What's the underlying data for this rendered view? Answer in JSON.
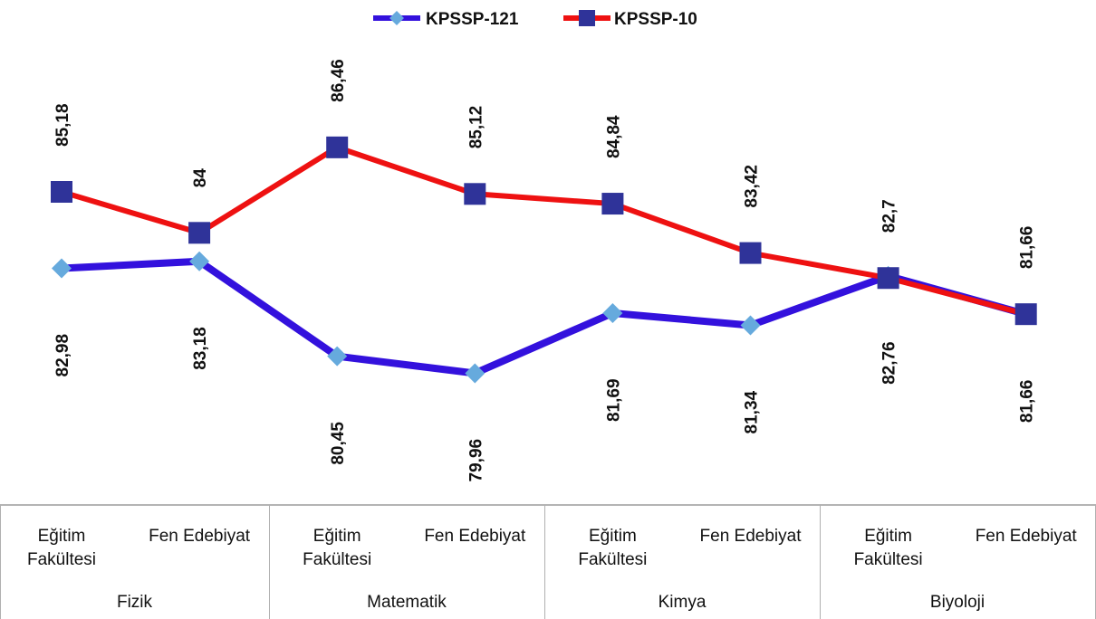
{
  "chart_data": {
    "type": "line",
    "title": "",
    "xlabel": "",
    "ylabel": "",
    "legend_position": "top-center",
    "grid": false,
    "categories": [
      "Eğitim Fakültesi",
      "Fen Edebiyat",
      "Eğitim Fakültesi",
      "Fen Edebiyat",
      "Eğitim Fakültesi",
      "Fen Edebiyat",
      "Eğitim Fakültesi",
      "Fen Edebiyat"
    ],
    "groups": [
      "Fizik",
      "Matematik",
      "Kimya",
      "Biyoloji"
    ],
    "series": [
      {
        "name": "KPSSP-121",
        "color": "#3311dd",
        "marker_color": "#66aadd",
        "marker": "diamond",
        "values": [
          82.98,
          83.18,
          80.45,
          79.96,
          81.69,
          81.34,
          82.76,
          81.66
        ],
        "labels": [
          "82,98",
          "83,18",
          "80,45",
          "79,96",
          "81,69",
          "81,34",
          "82,76",
          "81,66"
        ]
      },
      {
        "name": "KPSSP-10",
        "color": "#ee1111",
        "marker_color": "#2f3399",
        "marker": "square",
        "values": [
          85.18,
          84,
          86.46,
          85.12,
          84.84,
          83.42,
          82.7,
          81.66
        ],
        "labels": [
          "85,18",
          "84",
          "86,46",
          "85,12",
          "84,84",
          "83,42",
          "82,7",
          "81,66"
        ]
      }
    ]
  }
}
